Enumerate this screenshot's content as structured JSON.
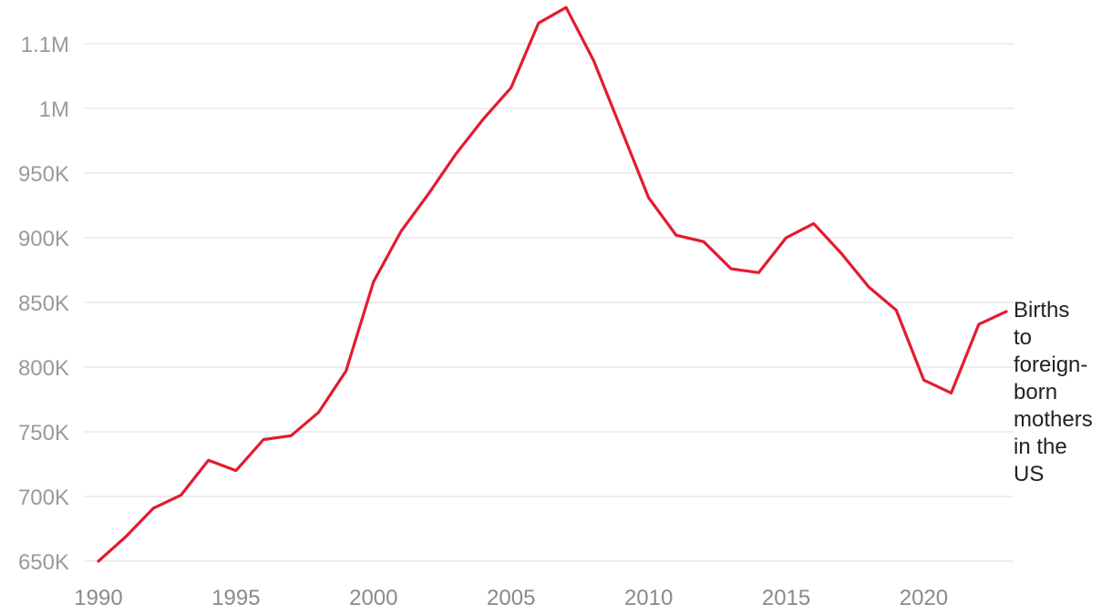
{
  "chart_data": {
    "type": "line",
    "title": "",
    "xlabel": "",
    "ylabel": "",
    "xlim": [
      1990,
      2023
    ],
    "ylim": [
      650000,
      1120000
    ],
    "grid": true,
    "yticks": [
      {
        "value": 650000,
        "label": "650K"
      },
      {
        "value": 700000,
        "label": "700K"
      },
      {
        "value": 750000,
        "label": "750K"
      },
      {
        "value": 800000,
        "label": "800K"
      },
      {
        "value": 850000,
        "label": "850K"
      },
      {
        "value": 900000,
        "label": "900K"
      },
      {
        "value": 950000,
        "label": "950K"
      },
      {
        "value": 1000000,
        "label": "1M"
      },
      {
        "value": 1050000,
        "label": "1.1M"
      }
    ],
    "xticks": [
      {
        "value": 1990,
        "label": "1990"
      },
      {
        "value": 1995,
        "label": "1995"
      },
      {
        "value": 2000,
        "label": "2000"
      },
      {
        "value": 2005,
        "label": "2005"
      },
      {
        "value": 2010,
        "label": "2010"
      },
      {
        "value": 2015,
        "label": "2015"
      },
      {
        "value": 2020,
        "label": "2020"
      }
    ],
    "series": [
      {
        "name": "Births to foreign-born mothers in the US",
        "label_lines": [
          "Births",
          "to",
          "foreign-",
          "born",
          "mothers",
          "in the",
          "US"
        ],
        "color": "#e31b30",
        "x": [
          1990,
          1991,
          1992,
          1993,
          1994,
          1995,
          1996,
          1997,
          1998,
          1999,
          2000,
          2001,
          2002,
          2003,
          2004,
          2005,
          2006,
          2007,
          2008,
          2009,
          2010,
          2011,
          2012,
          2013,
          2014,
          2015,
          2016,
          2017,
          2018,
          2019,
          2020,
          2021,
          2022,
          2023
        ],
        "y": [
          650000,
          669000,
          691000,
          701000,
          728000,
          720000,
          744000,
          747000,
          765000,
          797000,
          866000,
          905000,
          934000,
          965000,
          992000,
          1016000,
          1066000,
          1078000,
          1037000,
          984000,
          931000,
          902000,
          897000,
          876000,
          873000,
          900000,
          911000,
          888000,
          862000,
          844000,
          790000,
          780000,
          833000,
          843000
        ]
      }
    ]
  }
}
